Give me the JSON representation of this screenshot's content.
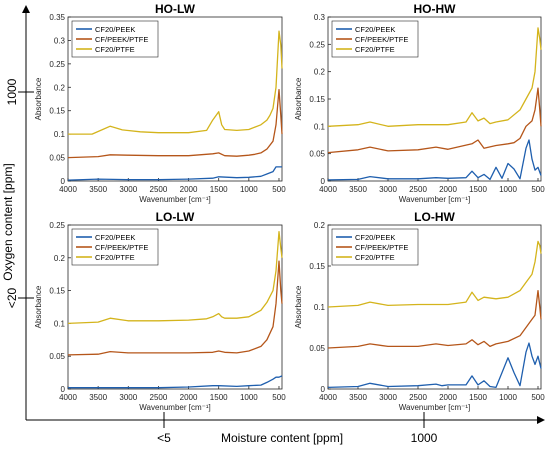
{
  "figure": {
    "x_outer_label": "Moisture content [ppm]",
    "y_outer_label": "Oxygen content [ppm]",
    "x_outer_ticks": [
      "<5",
      "1000"
    ],
    "y_outer_ticks": [
      "1000",
      "<20"
    ]
  },
  "colors": {
    "CF20/PEEK": "#1f5fae",
    "CF/PEEK/PTFE": "#b5561a",
    "CF20/PTFE": "#d4b41c"
  },
  "chart_data": [
    {
      "type": "line",
      "title": "HO-LW",
      "xlabel": "Wavenumber [cm⁻¹]",
      "ylabel": "Absorbance",
      "xlim": [
        4000,
        450
      ],
      "x_reversed": true,
      "ylim": [
        0,
        0.35
      ],
      "xticks": [
        4000,
        3500,
        3000,
        2500,
        2000,
        1500,
        1000,
        500
      ],
      "yticks": [
        0,
        0.05,
        0.1,
        0.15,
        0.2,
        0.25,
        0.3,
        0.35
      ],
      "legend": [
        "CF20/PEEK",
        "CF/PEEK/PTFE",
        "CF20/PTFE"
      ],
      "legend_position": "top-left",
      "series": [
        {
          "name": "CF20/PEEK",
          "x": [
            4000,
            3500,
            3000,
            2500,
            2000,
            1600,
            1500,
            1200,
            1000,
            800,
            700,
            600,
            550,
            500,
            450
          ],
          "y": [
            0.002,
            0.004,
            0.003,
            0.003,
            0.004,
            0.006,
            0.009,
            0.007,
            0.008,
            0.01,
            0.015,
            0.02,
            0.03,
            0.03,
            0.03
          ]
        },
        {
          "name": "CF/PEEK/PTFE",
          "x": [
            4000,
            3500,
            3300,
            3000,
            2500,
            2000,
            1600,
            1500,
            1400,
            1200,
            1000,
            900,
            800,
            700,
            600,
            550,
            500,
            470,
            450
          ],
          "y": [
            0.05,
            0.052,
            0.056,
            0.055,
            0.054,
            0.054,
            0.058,
            0.06,
            0.054,
            0.053,
            0.055,
            0.057,
            0.06,
            0.068,
            0.085,
            0.12,
            0.195,
            0.14,
            0.1
          ]
        },
        {
          "name": "CF20/PTFE",
          "x": [
            4000,
            3600,
            3300,
            3100,
            2800,
            2500,
            2000,
            1700,
            1600,
            1500,
            1450,
            1400,
            1200,
            1000,
            900,
            800,
            700,
            650,
            600,
            550,
            500,
            470,
            450
          ],
          "y": [
            0.1,
            0.1,
            0.117,
            0.109,
            0.105,
            0.103,
            0.103,
            0.108,
            0.13,
            0.148,
            0.12,
            0.11,
            0.108,
            0.11,
            0.115,
            0.12,
            0.13,
            0.14,
            0.155,
            0.2,
            0.32,
            0.29,
            0.24
          ]
        }
      ]
    },
    {
      "type": "line",
      "title": "HO-HW",
      "xlabel": "Wavenumber [cm⁻¹]",
      "ylabel": "Absorbance",
      "xlim": [
        4000,
        450
      ],
      "x_reversed": true,
      "ylim": [
        0,
        0.3
      ],
      "xticks": [
        4000,
        3500,
        3000,
        2500,
        2000,
        1500,
        1000,
        500
      ],
      "yticks": [
        0,
        0.05,
        0.1,
        0.15,
        0.2,
        0.25,
        0.3
      ],
      "legend": [
        "CF20/PEEK",
        "CF/PEEK/PTFE",
        "CF20/PTFE"
      ],
      "legend_position": "top-left",
      "series": [
        {
          "name": "CF20/PEEK",
          "x": [
            4000,
            3500,
            3300,
            3000,
            2500,
            2200,
            2000,
            1700,
            1600,
            1500,
            1400,
            1300,
            1200,
            1100,
            1000,
            900,
            800,
            700,
            650,
            600,
            550,
            500,
            450
          ],
          "y": [
            0.002,
            0.003,
            0.008,
            0.004,
            0.004,
            0.006,
            0.005,
            0.006,
            0.018,
            0.006,
            0.012,
            0.003,
            0.025,
            0.005,
            0.032,
            0.022,
            0.004,
            0.06,
            0.075,
            0.04,
            0.02,
            0.025,
            0.01
          ]
        },
        {
          "name": "CF/PEEK/PTFE",
          "x": [
            4000,
            3500,
            3300,
            3000,
            2500,
            2200,
            2000,
            1600,
            1500,
            1400,
            1200,
            1000,
            900,
            800,
            700,
            600,
            550,
            500,
            470,
            450
          ],
          "y": [
            0.052,
            0.057,
            0.062,
            0.055,
            0.057,
            0.062,
            0.058,
            0.068,
            0.075,
            0.06,
            0.065,
            0.068,
            0.07,
            0.078,
            0.1,
            0.11,
            0.13,
            0.17,
            0.13,
            0.1
          ]
        },
        {
          "name": "CF20/PTFE",
          "x": [
            4000,
            3500,
            3300,
            3000,
            2500,
            2000,
            1700,
            1600,
            1500,
            1400,
            1300,
            1200,
            1000,
            800,
            700,
            600,
            550,
            500,
            470,
            450
          ],
          "y": [
            0.1,
            0.103,
            0.108,
            0.1,
            0.103,
            0.103,
            0.108,
            0.125,
            0.11,
            0.115,
            0.105,
            0.108,
            0.112,
            0.13,
            0.15,
            0.17,
            0.2,
            0.28,
            0.26,
            0.24
          ]
        }
      ]
    },
    {
      "type": "line",
      "title": "LO-LW",
      "xlabel": "Wavenumber [cm⁻¹]",
      "ylabel": "Absorbance",
      "xlim": [
        4000,
        450
      ],
      "x_reversed": true,
      "ylim": [
        0,
        0.25
      ],
      "xticks": [
        4000,
        3500,
        3000,
        2500,
        2000,
        1500,
        1000,
        500
      ],
      "yticks": [
        0,
        0.05,
        0.1,
        0.15,
        0.2,
        0.25
      ],
      "legend": [
        "CF20/PEEK",
        "CF/PEEK/PTFE",
        "CF20/PTFE"
      ],
      "legend_position": "top-left",
      "series": [
        {
          "name": "CF20/PEEK",
          "x": [
            4000,
            3500,
            3000,
            2500,
            2000,
            1600,
            1500,
            1200,
            1000,
            800,
            700,
            600,
            550,
            500,
            450
          ],
          "y": [
            0.002,
            0.002,
            0.002,
            0.002,
            0.003,
            0.005,
            0.005,
            0.004,
            0.005,
            0.006,
            0.01,
            0.015,
            0.018,
            0.018,
            0.02
          ]
        },
        {
          "name": "CF/PEEK/PTFE",
          "x": [
            4000,
            3500,
            3300,
            3000,
            2500,
            2000,
            1600,
            1500,
            1400,
            1200,
            1000,
            800,
            700,
            600,
            550,
            500,
            470,
            450
          ],
          "y": [
            0.052,
            0.053,
            0.057,
            0.055,
            0.055,
            0.055,
            0.056,
            0.058,
            0.056,
            0.055,
            0.058,
            0.065,
            0.075,
            0.095,
            0.13,
            0.195,
            0.15,
            0.13
          ]
        },
        {
          "name": "CF20/PTFE",
          "x": [
            4000,
            3500,
            3300,
            3000,
            2500,
            2000,
            1700,
            1600,
            1500,
            1450,
            1400,
            1200,
            1000,
            800,
            700,
            600,
            550,
            500,
            470,
            450
          ],
          "y": [
            0.1,
            0.102,
            0.108,
            0.104,
            0.104,
            0.105,
            0.107,
            0.11,
            0.115,
            0.11,
            0.108,
            0.108,
            0.11,
            0.12,
            0.132,
            0.15,
            0.18,
            0.24,
            0.215,
            0.2
          ]
        }
      ]
    },
    {
      "type": "line",
      "title": "LO-HW",
      "xlabel": "Wavenumber [cm⁻¹]",
      "ylabel": "Absorbance",
      "xlim": [
        4000,
        450
      ],
      "x_reversed": true,
      "ylim": [
        0,
        0.2
      ],
      "xticks": [
        4000,
        3500,
        3000,
        2500,
        2000,
        1500,
        1000,
        500
      ],
      "yticks": [
        0,
        0.05,
        0.1,
        0.15,
        0.2
      ],
      "legend": [
        "CF20/PEEK",
        "CF/PEEK/PTFE",
        "CF20/PTFE"
      ],
      "legend_position": "top-left",
      "series": [
        {
          "name": "CF20/PEEK",
          "x": [
            4000,
            3500,
            3300,
            3000,
            2500,
            2200,
            2100,
            2000,
            1700,
            1600,
            1500,
            1400,
            1300,
            1200,
            1100,
            1000,
            900,
            800,
            700,
            650,
            600,
            550,
            500,
            450
          ],
          "y": [
            0.002,
            0.003,
            0.007,
            0.003,
            0.004,
            0.006,
            0.004,
            0.005,
            0.005,
            0.016,
            0.005,
            0.01,
            0.003,
            0.002,
            0.02,
            0.038,
            0.02,
            0.004,
            0.045,
            0.056,
            0.04,
            0.03,
            0.04,
            0.025
          ]
        },
        {
          "name": "CF/PEEK/PTFE",
          "x": [
            4000,
            3500,
            3300,
            3000,
            2500,
            2200,
            2000,
            1700,
            1600,
            1500,
            1400,
            1300,
            1200,
            1000,
            800,
            700,
            600,
            550,
            500,
            470,
            450
          ],
          "y": [
            0.05,
            0.052,
            0.055,
            0.052,
            0.052,
            0.055,
            0.053,
            0.055,
            0.06,
            0.054,
            0.058,
            0.052,
            0.055,
            0.058,
            0.065,
            0.075,
            0.085,
            0.09,
            0.12,
            0.1,
            0.085
          ]
        },
        {
          "name": "CF20/PTFE",
          "x": [
            4000,
            3500,
            3300,
            3000,
            2500,
            2000,
            1700,
            1600,
            1500,
            1400,
            1200,
            1000,
            800,
            700,
            600,
            550,
            500,
            470,
            450
          ],
          "y": [
            0.1,
            0.102,
            0.106,
            0.102,
            0.103,
            0.103,
            0.106,
            0.118,
            0.108,
            0.112,
            0.11,
            0.112,
            0.12,
            0.13,
            0.14,
            0.155,
            0.18,
            0.175,
            0.165
          ]
        }
      ]
    }
  ]
}
